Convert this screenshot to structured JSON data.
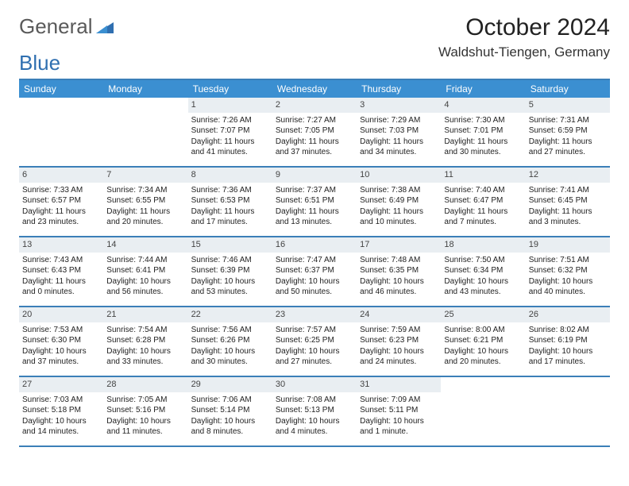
{
  "logo": {
    "text1": "General",
    "text2": "Blue",
    "accent_color": "#2f6fb0"
  },
  "title": "October 2024",
  "location": "Waldshut-Tiengen, Germany",
  "header_bg": "#3b8fd1",
  "daynum_bg": "#e9eef2",
  "border_color": "#3b7fb8",
  "day_names": [
    "Sunday",
    "Monday",
    "Tuesday",
    "Wednesday",
    "Thursday",
    "Friday",
    "Saturday"
  ],
  "weeks": [
    [
      {
        "blank": true
      },
      {
        "blank": true
      },
      {
        "n": "1",
        "sr": "Sunrise: 7:26 AM",
        "ss": "Sunset: 7:07 PM",
        "dl": "Daylight: 11 hours and 41 minutes."
      },
      {
        "n": "2",
        "sr": "Sunrise: 7:27 AM",
        "ss": "Sunset: 7:05 PM",
        "dl": "Daylight: 11 hours and 37 minutes."
      },
      {
        "n": "3",
        "sr": "Sunrise: 7:29 AM",
        "ss": "Sunset: 7:03 PM",
        "dl": "Daylight: 11 hours and 34 minutes."
      },
      {
        "n": "4",
        "sr": "Sunrise: 7:30 AM",
        "ss": "Sunset: 7:01 PM",
        "dl": "Daylight: 11 hours and 30 minutes."
      },
      {
        "n": "5",
        "sr": "Sunrise: 7:31 AM",
        "ss": "Sunset: 6:59 PM",
        "dl": "Daylight: 11 hours and 27 minutes."
      }
    ],
    [
      {
        "n": "6",
        "sr": "Sunrise: 7:33 AM",
        "ss": "Sunset: 6:57 PM",
        "dl": "Daylight: 11 hours and 23 minutes."
      },
      {
        "n": "7",
        "sr": "Sunrise: 7:34 AM",
        "ss": "Sunset: 6:55 PM",
        "dl": "Daylight: 11 hours and 20 minutes."
      },
      {
        "n": "8",
        "sr": "Sunrise: 7:36 AM",
        "ss": "Sunset: 6:53 PM",
        "dl": "Daylight: 11 hours and 17 minutes."
      },
      {
        "n": "9",
        "sr": "Sunrise: 7:37 AM",
        "ss": "Sunset: 6:51 PM",
        "dl": "Daylight: 11 hours and 13 minutes."
      },
      {
        "n": "10",
        "sr": "Sunrise: 7:38 AM",
        "ss": "Sunset: 6:49 PM",
        "dl": "Daylight: 11 hours and 10 minutes."
      },
      {
        "n": "11",
        "sr": "Sunrise: 7:40 AM",
        "ss": "Sunset: 6:47 PM",
        "dl": "Daylight: 11 hours and 7 minutes."
      },
      {
        "n": "12",
        "sr": "Sunrise: 7:41 AM",
        "ss": "Sunset: 6:45 PM",
        "dl": "Daylight: 11 hours and 3 minutes."
      }
    ],
    [
      {
        "n": "13",
        "sr": "Sunrise: 7:43 AM",
        "ss": "Sunset: 6:43 PM",
        "dl": "Daylight: 11 hours and 0 minutes."
      },
      {
        "n": "14",
        "sr": "Sunrise: 7:44 AM",
        "ss": "Sunset: 6:41 PM",
        "dl": "Daylight: 10 hours and 56 minutes."
      },
      {
        "n": "15",
        "sr": "Sunrise: 7:46 AM",
        "ss": "Sunset: 6:39 PM",
        "dl": "Daylight: 10 hours and 53 minutes."
      },
      {
        "n": "16",
        "sr": "Sunrise: 7:47 AM",
        "ss": "Sunset: 6:37 PM",
        "dl": "Daylight: 10 hours and 50 minutes."
      },
      {
        "n": "17",
        "sr": "Sunrise: 7:48 AM",
        "ss": "Sunset: 6:35 PM",
        "dl": "Daylight: 10 hours and 46 minutes."
      },
      {
        "n": "18",
        "sr": "Sunrise: 7:50 AM",
        "ss": "Sunset: 6:34 PM",
        "dl": "Daylight: 10 hours and 43 minutes."
      },
      {
        "n": "19",
        "sr": "Sunrise: 7:51 AM",
        "ss": "Sunset: 6:32 PM",
        "dl": "Daylight: 10 hours and 40 minutes."
      }
    ],
    [
      {
        "n": "20",
        "sr": "Sunrise: 7:53 AM",
        "ss": "Sunset: 6:30 PM",
        "dl": "Daylight: 10 hours and 37 minutes."
      },
      {
        "n": "21",
        "sr": "Sunrise: 7:54 AM",
        "ss": "Sunset: 6:28 PM",
        "dl": "Daylight: 10 hours and 33 minutes."
      },
      {
        "n": "22",
        "sr": "Sunrise: 7:56 AM",
        "ss": "Sunset: 6:26 PM",
        "dl": "Daylight: 10 hours and 30 minutes."
      },
      {
        "n": "23",
        "sr": "Sunrise: 7:57 AM",
        "ss": "Sunset: 6:25 PM",
        "dl": "Daylight: 10 hours and 27 minutes."
      },
      {
        "n": "24",
        "sr": "Sunrise: 7:59 AM",
        "ss": "Sunset: 6:23 PM",
        "dl": "Daylight: 10 hours and 24 minutes."
      },
      {
        "n": "25",
        "sr": "Sunrise: 8:00 AM",
        "ss": "Sunset: 6:21 PM",
        "dl": "Daylight: 10 hours and 20 minutes."
      },
      {
        "n": "26",
        "sr": "Sunrise: 8:02 AM",
        "ss": "Sunset: 6:19 PM",
        "dl": "Daylight: 10 hours and 17 minutes."
      }
    ],
    [
      {
        "n": "27",
        "sr": "Sunrise: 7:03 AM",
        "ss": "Sunset: 5:18 PM",
        "dl": "Daylight: 10 hours and 14 minutes."
      },
      {
        "n": "28",
        "sr": "Sunrise: 7:05 AM",
        "ss": "Sunset: 5:16 PM",
        "dl": "Daylight: 10 hours and 11 minutes."
      },
      {
        "n": "29",
        "sr": "Sunrise: 7:06 AM",
        "ss": "Sunset: 5:14 PM",
        "dl": "Daylight: 10 hours and 8 minutes."
      },
      {
        "n": "30",
        "sr": "Sunrise: 7:08 AM",
        "ss": "Sunset: 5:13 PM",
        "dl": "Daylight: 10 hours and 4 minutes."
      },
      {
        "n": "31",
        "sr": "Sunrise: 7:09 AM",
        "ss": "Sunset: 5:11 PM",
        "dl": "Daylight: 10 hours and 1 minute."
      },
      {
        "blank": true
      },
      {
        "blank": true
      }
    ]
  ]
}
